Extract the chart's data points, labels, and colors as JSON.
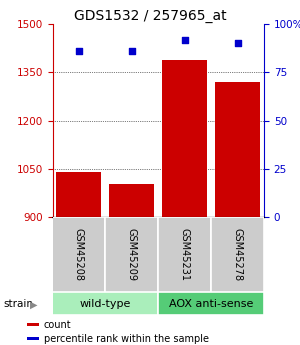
{
  "title": "GDS1532 / 257965_at",
  "samples": [
    "GSM45208",
    "GSM45209",
    "GSM45231",
    "GSM45278"
  ],
  "counts": [
    1040,
    1005,
    1390,
    1320
  ],
  "percentiles": [
    86,
    86,
    92,
    90
  ],
  "ylim_left": [
    900,
    1500
  ],
  "ylim_right": [
    0,
    100
  ],
  "yticks_left": [
    900,
    1050,
    1200,
    1350,
    1500
  ],
  "yticks_right": [
    0,
    25,
    50,
    75,
    100
  ],
  "ytick_labels_right": [
    "0",
    "25",
    "50",
    "75",
    "100%"
  ],
  "bar_color": "#cc0000",
  "dot_color": "#0000cc",
  "bar_width": 0.85,
  "groups": [
    {
      "label": "wild-type",
      "samples": [
        0,
        1
      ],
      "color": "#aaeebb"
    },
    {
      "label": "AOX anti-sense",
      "samples": [
        2,
        3
      ],
      "color": "#55cc77"
    }
  ],
  "strain_label": "strain",
  "legend_items": [
    {
      "color": "#cc0000",
      "label": "count"
    },
    {
      "color": "#0000cc",
      "label": "percentile rank within the sample"
    }
  ],
  "title_fontsize": 10,
  "tick_fontsize": 7.5,
  "sample_fontsize": 7,
  "group_fontsize": 8
}
